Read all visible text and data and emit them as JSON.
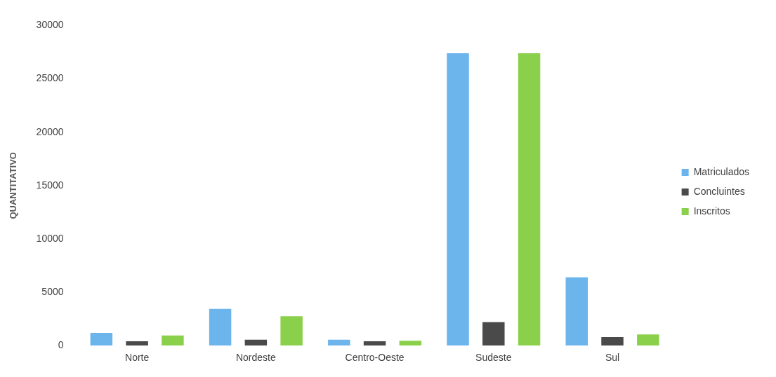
{
  "chart_data": {
    "type": "bar",
    "ylabel": "QUANTITATIVO",
    "categories": [
      "Norte",
      "Nordeste",
      "Centro-Oeste",
      "Sudeste",
      "Sul"
    ],
    "series": [
      {
        "name": "Matriculados",
        "color": "#6cb4ec",
        "values": [
          1200,
          3450,
          550,
          27400,
          6400
        ]
      },
      {
        "name": "Concluintes",
        "color": "#4a4a4a",
        "values": [
          400,
          550,
          400,
          2200,
          800
        ]
      },
      {
        "name": "Inscritos",
        "color": "#8bd04a",
        "values": [
          950,
          2750,
          450,
          27400,
          1050
        ]
      }
    ],
    "ylim": [
      0,
      30000
    ],
    "yticks": [
      0,
      5000,
      10000,
      15000,
      20000,
      25000,
      30000
    ],
    "grid": false,
    "legend": "right"
  }
}
